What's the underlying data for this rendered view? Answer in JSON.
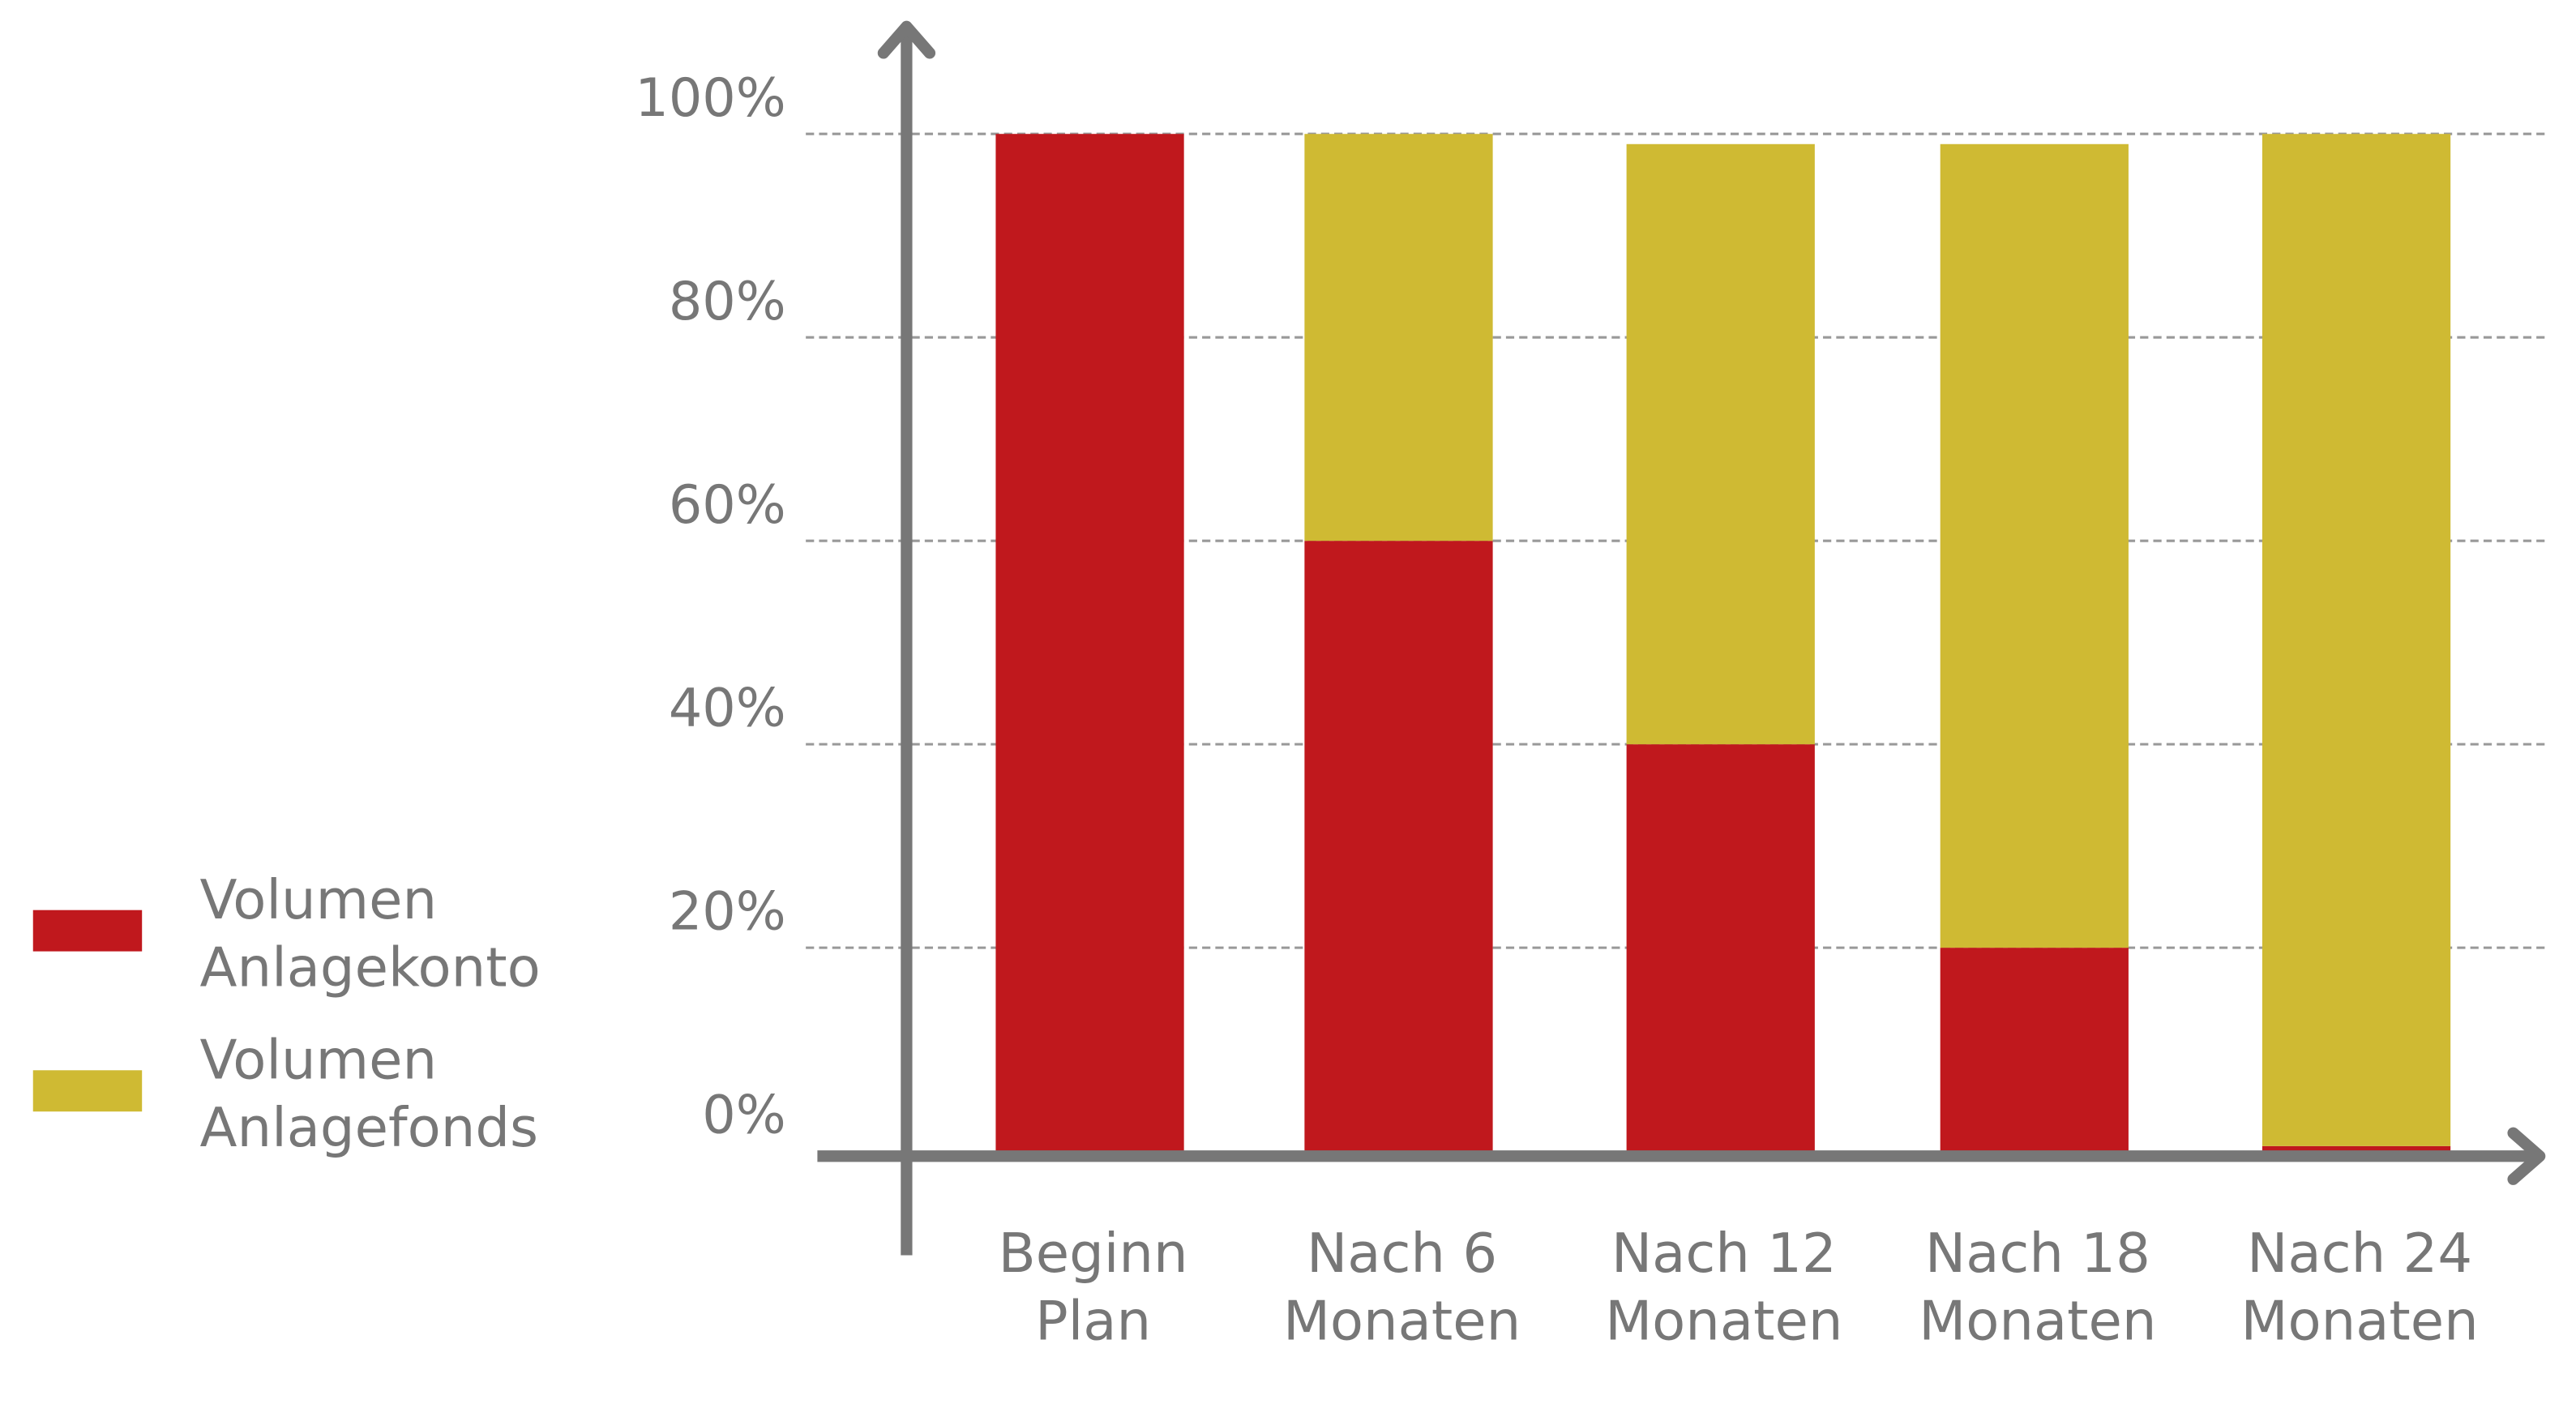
{
  "chart_data": {
    "type": "bar",
    "stacked": true,
    "title": "",
    "xlabel": "",
    "ylabel": "",
    "ylim": [
      0,
      100
    ],
    "grid": true,
    "legend_placement": "left",
    "yticks": [
      "0%",
      "20%",
      "40%",
      "60%",
      "80%",
      "100%"
    ],
    "ytick_values": [
      0,
      20,
      40,
      60,
      80,
      100
    ],
    "categories": [
      [
        "Beginn",
        "Plan"
      ],
      [
        "Nach 6",
        "Monaten"
      ],
      [
        "Nach 12",
        "Monaten"
      ],
      [
        "Nach 18",
        "Monaten"
      ],
      [
        "Nach 24",
        "Monaten"
      ]
    ],
    "series": [
      {
        "name": [
          "Volumen",
          "Anlagekonto"
        ],
        "color": "#c0181d",
        "values": [
          100,
          60,
          40,
          20,
          0.5
        ]
      },
      {
        "name": [
          "Volumen",
          "Anlagefonds"
        ],
        "color": "#cfba33",
        "values": [
          0,
          40,
          59,
          79,
          99.5
        ]
      }
    ],
    "axis_color": "#777777"
  }
}
